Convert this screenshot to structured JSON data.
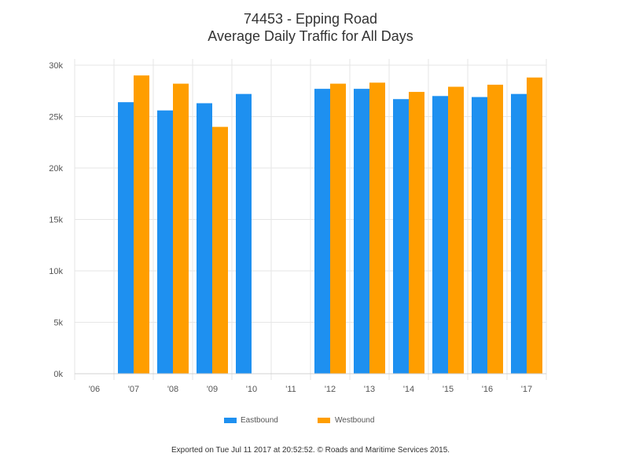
{
  "chart_data": {
    "type": "bar",
    "title": "74453 - Epping Road",
    "subtitle": "Average Daily Traffic for All Days",
    "categories": [
      "'06",
      "'07",
      "'08",
      "'09",
      "'10",
      "'11",
      "'12",
      "'13",
      "'14",
      "'15",
      "'16",
      "'17"
    ],
    "series": [
      {
        "name": "Eastbound",
        "color": "#1e90f0",
        "values": [
          null,
          26400,
          25600,
          26300,
          27200,
          null,
          27700,
          27700,
          26700,
          27000,
          26900,
          27200
        ]
      },
      {
        "name": "Westbound",
        "color": "#ff9e00",
        "values": [
          null,
          29000,
          28200,
          24000,
          null,
          null,
          28200,
          28300,
          27400,
          27900,
          28100,
          28800
        ]
      }
    ],
    "ylim": [
      0,
      30000
    ],
    "yticks": [
      {
        "value": 0,
        "label": "0k"
      },
      {
        "value": 5000,
        "label": "5k"
      },
      {
        "value": 10000,
        "label": "10k"
      },
      {
        "value": 15000,
        "label": "15k"
      },
      {
        "value": 20000,
        "label": "20k"
      },
      {
        "value": 25000,
        "label": "25k"
      },
      {
        "value": 30000,
        "label": "30k"
      }
    ],
    "xlabel": "",
    "ylabel": "",
    "grid": true,
    "legend": "bottom-center"
  },
  "footer": "Exported on Tue Jul 11 2017 at 20:52:52. © Roads and Maritime Services 2015."
}
